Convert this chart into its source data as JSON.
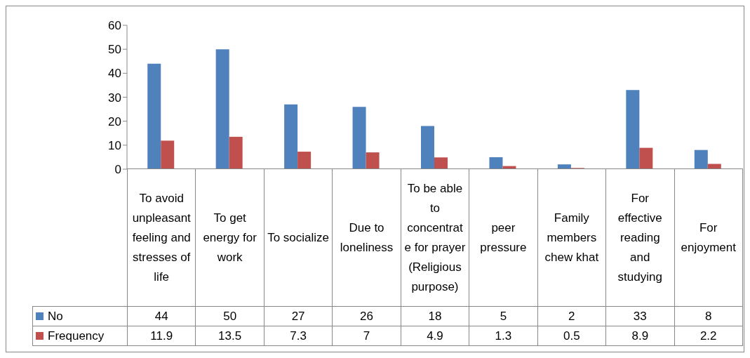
{
  "chart_data": {
    "type": "bar",
    "categories": [
      "To avoid unpleasant feeling and stresses of life",
      "To get energy for work",
      "To socialize",
      "Due to loneliness",
      "To be able to concentrate for prayer (Religious purpose)",
      "peer pressure",
      "Family members chew khat",
      "For effective reading and studying",
      "For enjoyment"
    ],
    "series": [
      {
        "name": "No",
        "color": "#4f81bd",
        "values": [
          44,
          50,
          27,
          26,
          18,
          5,
          2,
          33,
          8
        ]
      },
      {
        "name": "Frequency",
        "color": "#c0504d",
        "values": [
          11.9,
          13.5,
          7.3,
          7,
          4.9,
          1.3,
          0.5,
          8.9,
          2.2
        ]
      }
    ],
    "ylim": [
      0,
      60
    ],
    "yticks": [
      0,
      10,
      20,
      30,
      40,
      50,
      60
    ],
    "grid": false,
    "legend": "bottom",
    "data_labels": true
  }
}
